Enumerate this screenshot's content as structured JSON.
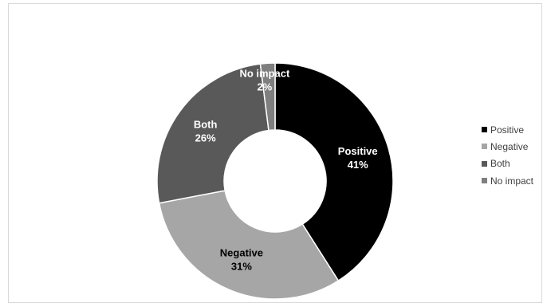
{
  "chart_data": {
    "type": "donut",
    "title": "",
    "slices": [
      {
        "label": "Positive",
        "value": 41,
        "display": "41%",
        "color": "#000000",
        "label_color": "#ffffff"
      },
      {
        "label": "Negative",
        "value": 31,
        "display": "31%",
        "color": "#a6a6a6",
        "label_color": "#000000"
      },
      {
        "label": "Both",
        "value": 26,
        "display": "26%",
        "color": "#595959",
        "label_color": "#ffffff"
      },
      {
        "label": "No impact",
        "value": 2,
        "display": "2%",
        "color": "#7f7f7f",
        "label_color": "#ffffff"
      }
    ],
    "legend_position": "right",
    "legend": [
      {
        "label": "Positive",
        "color": "#000000"
      },
      {
        "label": "Negative",
        "color": "#a6a6a6"
      },
      {
        "label": "Both",
        "color": "#595959"
      },
      {
        "label": "No impact",
        "color": "#7f7f7f"
      }
    ]
  }
}
